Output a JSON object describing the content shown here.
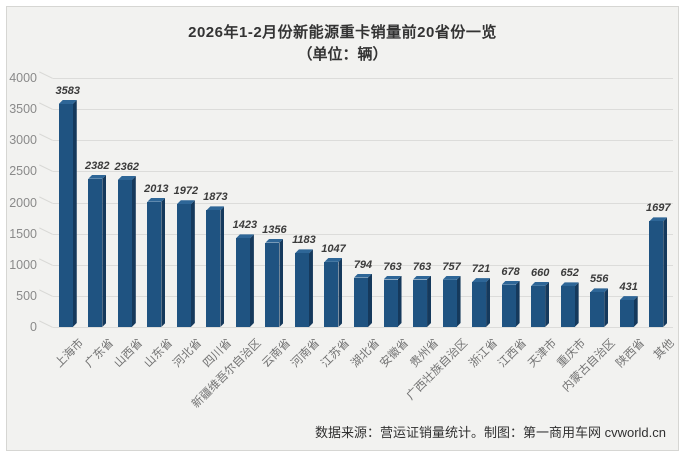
{
  "header": {
    "title": "2026年1-2月份新能源重卡销量前20省份一览",
    "subtitle": "（单位：辆）"
  },
  "footer": {
    "source_note": "数据来源：营运证销量统计。制图：第一商用车网 cvworld.cn"
  },
  "colors": {
    "bar_face": "#1F5381",
    "bar_side": "#15395C",
    "bar_top": "#2E6697",
    "panel_bg": "#F2F2F0",
    "gridline": "#DCDCDA",
    "value_label": "#3b3b3b",
    "axis_label": "#737373"
  },
  "chart_data": {
    "type": "bar",
    "title": "2026年1-2月份新能源重卡销量前20省份一览",
    "subtitle_unit": "（单位：辆）",
    "categories": [
      "上海市",
      "广东省",
      "山西省",
      "山东省",
      "河北省",
      "四川省",
      "新疆维吾尔自治区",
      "云南省",
      "河南省",
      "江苏省",
      "湖北省",
      "安徽省",
      "贵州省",
      "广西壮族自治区",
      "浙江省",
      "江西省",
      "天津市",
      "重庆市",
      "内蒙古自治区",
      "陕西省",
      "其他"
    ],
    "values": [
      3583,
      2382,
      2362,
      2013,
      1972,
      1873,
      1423,
      1356,
      1183,
      1047,
      794,
      763,
      763,
      757,
      721,
      678,
      660,
      652,
      556,
      431,
      1697
    ],
    "xlabel": "",
    "ylabel": "",
    "ylim": [
      0,
      4000
    ],
    "yticks": [
      0,
      500,
      1000,
      1500,
      2000,
      2500,
      3000,
      3500,
      4000
    ],
    "grid": true,
    "legend": false,
    "style_3d": true,
    "data_labels": true,
    "source_note": "数据来源：营运证销量统计。制图：第一商用车网 cvworld.cn"
  }
}
